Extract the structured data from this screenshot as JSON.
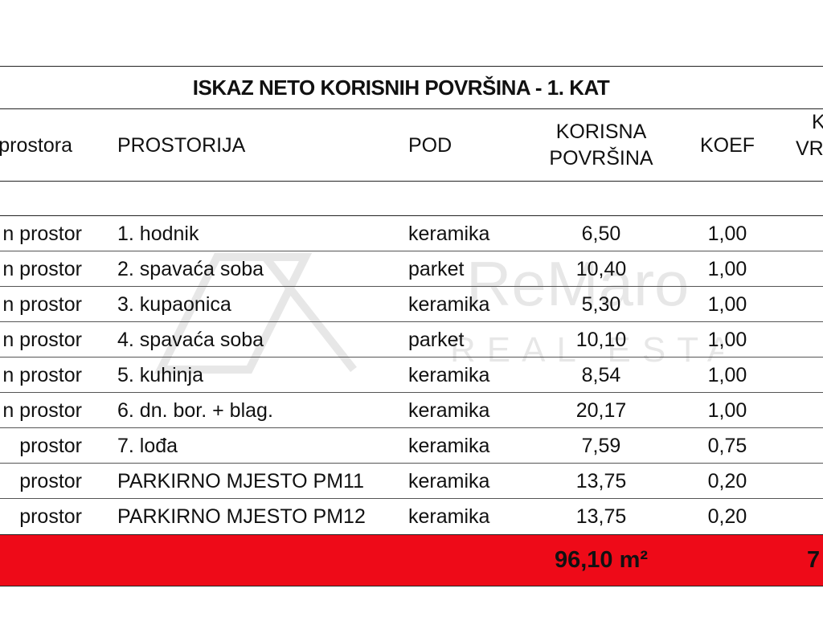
{
  "table": {
    "title": "ISKAZ NETO KORISNIH POVRŠINA - 1. KAT",
    "headers": {
      "type": "prostora",
      "room": "PROSTORIJA",
      "floor": "POD",
      "area_line1": "KORISNA",
      "area_line2": "POVRŠINA",
      "koef": "KOEF",
      "value_line1": "K",
      "value_line2": "VR"
    },
    "rows": [
      {
        "type": "n prostor",
        "room": "1. hodnik",
        "floor": "keramika",
        "area": "6,50",
        "koef": "1,00"
      },
      {
        "type": "n prostor",
        "room": "2. spavaća soba",
        "floor": "parket",
        "area": "10,40",
        "koef": "1,00"
      },
      {
        "type": "n prostor",
        "room": "3. kupaonica",
        "floor": "keramika",
        "area": "5,30",
        "koef": "1,00"
      },
      {
        "type": "n prostor",
        "room": "4. spavaća soba",
        "floor": "parket",
        "area": "10,10",
        "koef": "1,00"
      },
      {
        "type": "n prostor",
        "room": "5. kuhinja",
        "floor": "keramika",
        "area": "8,54",
        "koef": "1,00"
      },
      {
        "type": "n prostor",
        "room": "6. dn. bor. + blag.",
        "floor": "keramika",
        "area": "20,17",
        "koef": "1,00"
      },
      {
        "type": "prostor",
        "room": "7. lođa",
        "floor": "keramika",
        "area": "7,59",
        "koef": "0,75"
      },
      {
        "type": "prostor",
        "room": "PARKIRNO MJESTO PM11",
        "floor": "keramika",
        "area": "13,75",
        "koef": "0,20"
      },
      {
        "type": "prostor",
        "room": "PARKIRNO MJESTO PM12",
        "floor": "keramika",
        "area": "13,75",
        "koef": "0,20"
      }
    ],
    "total": {
      "area": "96,10 m²",
      "value": "7"
    }
  },
  "watermark": {
    "brand": "ReMaro",
    "sub": "REAL ESTATE"
  },
  "colors": {
    "total_bg": "#ee0a18",
    "text": "#111111"
  }
}
